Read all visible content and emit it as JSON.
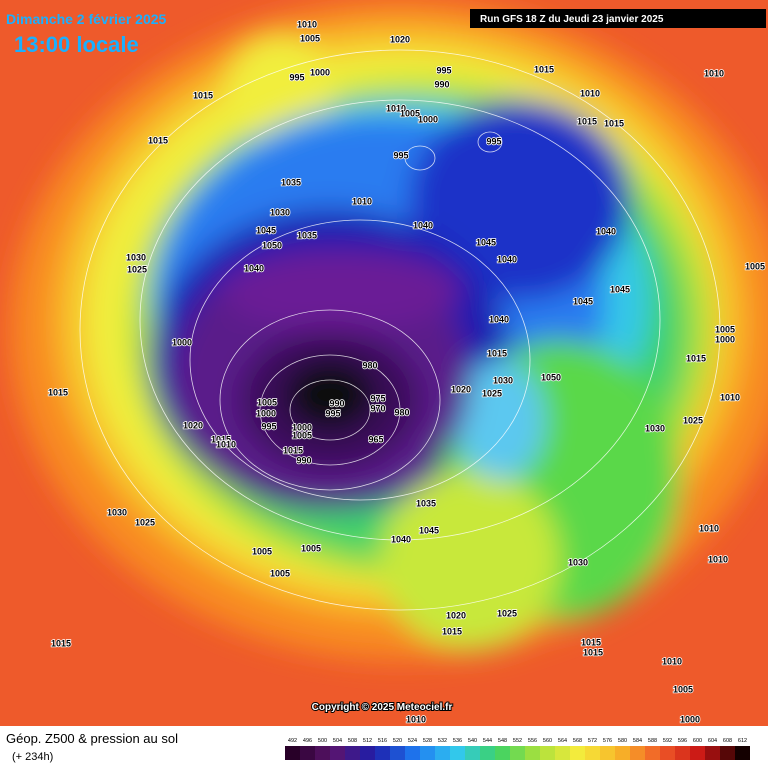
{
  "header": {
    "date": "Dimanche 2 février 2025",
    "time": "13:00 locale",
    "run": "Run GFS 18 Z du Jeudi 23 janvier 2025"
  },
  "copyright": "Copyright © 2025 Meteociel.fr",
  "caption": {
    "title": "Géop. Z500 & pression au sol",
    "lead": "(+ 234h)"
  },
  "scale": [
    492,
    496,
    500,
    504,
    508,
    512,
    516,
    520,
    524,
    528,
    532,
    536,
    540,
    544,
    548,
    552,
    556,
    560,
    564,
    568,
    572,
    576,
    580,
    584,
    588,
    592,
    596,
    600,
    604,
    608,
    612
  ],
  "pressure_labels": [
    1010,
    1005,
    1020,
    995,
    1000,
    995,
    990,
    1015,
    1010,
    1015,
    1010,
    1010,
    1005,
    1000,
    1015,
    1015,
    1015,
    995,
    995,
    1035,
    1010,
    1040,
    1045,
    1040,
    1030,
    1045,
    1050,
    1035,
    1040,
    1040,
    1030,
    1025,
    1005,
    1045,
    1045,
    1040,
    1000,
    980,
    1005,
    1000,
    1015,
    1015,
    1020,
    1030,
    1050,
    1025,
    1005,
    1000,
    995,
    990,
    995,
    975,
    970,
    980,
    965,
    1020,
    1015,
    1010,
    1030,
    1025,
    1010,
    1015,
    1000,
    1005,
    1015,
    990,
    1030,
    1025,
    1035,
    1045,
    1040,
    1005,
    1005,
    1005,
    1030,
    1010,
    1010,
    1020,
    1025,
    1015,
    1015,
    1015,
    1015,
    1010,
    1005,
    1000,
    1010
  ]
}
